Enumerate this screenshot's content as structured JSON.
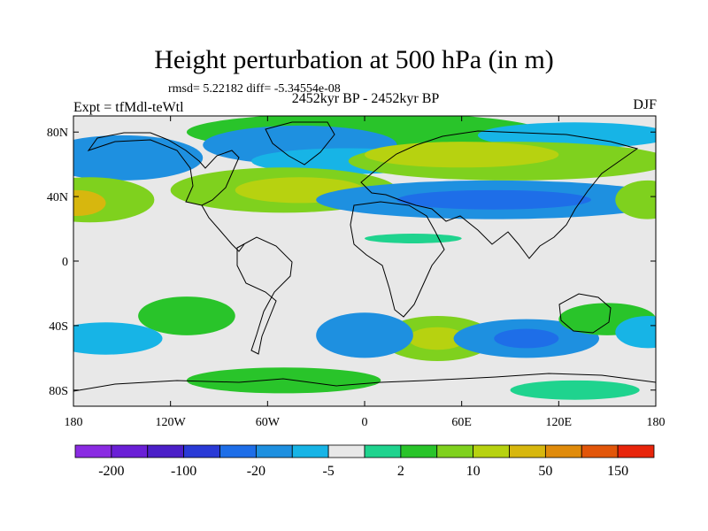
{
  "title": "Height perturbation at 500 hPa (in m)",
  "stats": "rmsd= 5.22182 diff= -5.34554e-08",
  "period": "2452kyr BP - 2452kyr BP",
  "experiment": "Expt = tfMdl-teWtl",
  "season": "DJF",
  "axes": {
    "lat_ticks": [
      {
        "value": 80,
        "label": "80N"
      },
      {
        "value": 40,
        "label": "40N"
      },
      {
        "value": 0,
        "label": "0"
      },
      {
        "value": -40,
        "label": "40S"
      },
      {
        "value": -80,
        "label": "80S"
      }
    ],
    "lon_ticks": [
      {
        "value": -180,
        "label": "180"
      },
      {
        "value": -120,
        "label": "120W"
      },
      {
        "value": -60,
        "label": "60W"
      },
      {
        "value": 0,
        "label": "0"
      },
      {
        "value": 60,
        "label": "60E"
      },
      {
        "value": 120,
        "label": "120E"
      },
      {
        "value": 180,
        "label": "180"
      }
    ],
    "lon_range": [
      -180,
      180
    ],
    "lat_range": [
      -90,
      90
    ]
  },
  "colorbar": {
    "colors": [
      "#8a2be2",
      "#6a1fd6",
      "#4b1fc8",
      "#2a3ad6",
      "#1e6ee8",
      "#1e90e0",
      "#17b4e6",
      "#e8e8e8",
      "#1fd38e",
      "#29c42a",
      "#7fd11e",
      "#b7d210",
      "#d7b70e",
      "#e08b0b",
      "#e2560a",
      "#e8250b"
    ],
    "labels": [
      {
        "after_box": 1,
        "text": "-200"
      },
      {
        "after_box": 3,
        "text": "-100"
      },
      {
        "after_box": 5,
        "text": "-20"
      },
      {
        "after_box": 7,
        "text": "-5"
      },
      {
        "after_box": 9,
        "text": "2"
      },
      {
        "after_box": 11,
        "text": "10"
      },
      {
        "after_box": 13,
        "text": "50"
      },
      {
        "after_box": 15,
        "text": "150"
      }
    ]
  },
  "field": [
    {
      "lon": 0,
      "lat": 80,
      "rx": 110,
      "ry": 12,
      "level": 9
    },
    {
      "lon": -40,
      "lat": 72,
      "rx": 60,
      "ry": 12,
      "level": 5
    },
    {
      "lon": -10,
      "lat": 62,
      "rx": 60,
      "ry": 8,
      "level": 6
    },
    {
      "lon": -150,
      "lat": 64,
      "rx": 50,
      "ry": 14,
      "level": 5
    },
    {
      "lon": 130,
      "lat": 78,
      "rx": 60,
      "ry": 8,
      "level": 6
    },
    {
      "lon": 90,
      "lat": 62,
      "rx": 100,
      "ry": 12,
      "level": 10
    },
    {
      "lon": 60,
      "lat": 66,
      "rx": 60,
      "ry": 8,
      "level": 11
    },
    {
      "lon": -50,
      "lat": 44,
      "rx": 70,
      "ry": 14,
      "level": 10
    },
    {
      "lon": -40,
      "lat": 44,
      "rx": 40,
      "ry": 8,
      "level": 11
    },
    {
      "lon": 80,
      "lat": 38,
      "rx": 110,
      "ry": 12,
      "level": 5
    },
    {
      "lon": 80,
      "lat": 38,
      "rx": 60,
      "ry": 6,
      "level": 4
    },
    {
      "lon": -170,
      "lat": 38,
      "rx": 40,
      "ry": 14,
      "level": 10
    },
    {
      "lon": -178,
      "lat": 36,
      "rx": 18,
      "ry": 8,
      "level": 12
    },
    {
      "lon": 175,
      "lat": 38,
      "rx": 20,
      "ry": 12,
      "level": 10
    },
    {
      "lon": 30,
      "lat": 14,
      "rx": 30,
      "ry": 3,
      "level": 8
    },
    {
      "lon": 45,
      "lat": -48,
      "rx": 35,
      "ry": 14,
      "level": 10
    },
    {
      "lon": 45,
      "lat": -48,
      "rx": 18,
      "ry": 7,
      "level": 11
    },
    {
      "lon": 0,
      "lat": -46,
      "rx": 30,
      "ry": 14,
      "level": 5
    },
    {
      "lon": 100,
      "lat": -48,
      "rx": 45,
      "ry": 12,
      "level": 5
    },
    {
      "lon": 100,
      "lat": -48,
      "rx": 20,
      "ry": 6,
      "level": 4
    },
    {
      "lon": -110,
      "lat": -34,
      "rx": 30,
      "ry": 12,
      "level": 9
    },
    {
      "lon": -160,
      "lat": -48,
      "rx": 35,
      "ry": 10,
      "level": 6
    },
    {
      "lon": 150,
      "lat": -36,
      "rx": 30,
      "ry": 10,
      "level": 9
    },
    {
      "lon": 175,
      "lat": -44,
      "rx": 20,
      "ry": 10,
      "level": 6
    },
    {
      "lon": -50,
      "lat": -74,
      "rx": 60,
      "ry": 8,
      "level": 9
    },
    {
      "lon": 130,
      "lat": -80,
      "rx": 40,
      "ry": 6,
      "level": 8
    }
  ]
}
